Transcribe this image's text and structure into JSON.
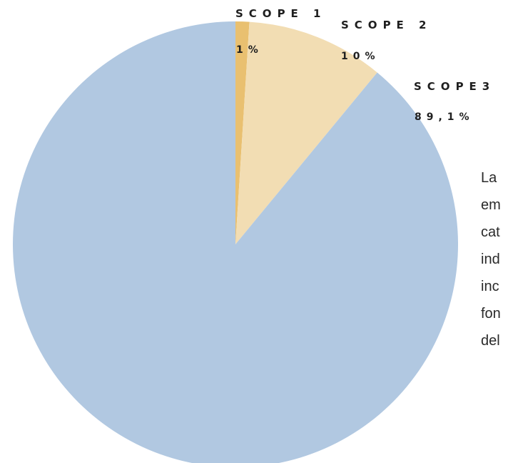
{
  "chart_data": {
    "type": "pie",
    "slices": [
      {
        "label": "SCOPE 1",
        "value_label": "1%",
        "value": 1,
        "color": "#E9C070"
      },
      {
        "label": "SCOPE 2",
        "value_label": "10%",
        "value": 10,
        "color": "#F2DDB3"
      },
      {
        "label": "SCOPE3",
        "value_label": "89,1%",
        "value": 89.1,
        "color": "#B1C8E1"
      }
    ]
  },
  "side_text": {
    "lines": [
      "La",
      "em",
      "cat",
      "ind",
      "inc",
      "fon",
      "del"
    ]
  }
}
